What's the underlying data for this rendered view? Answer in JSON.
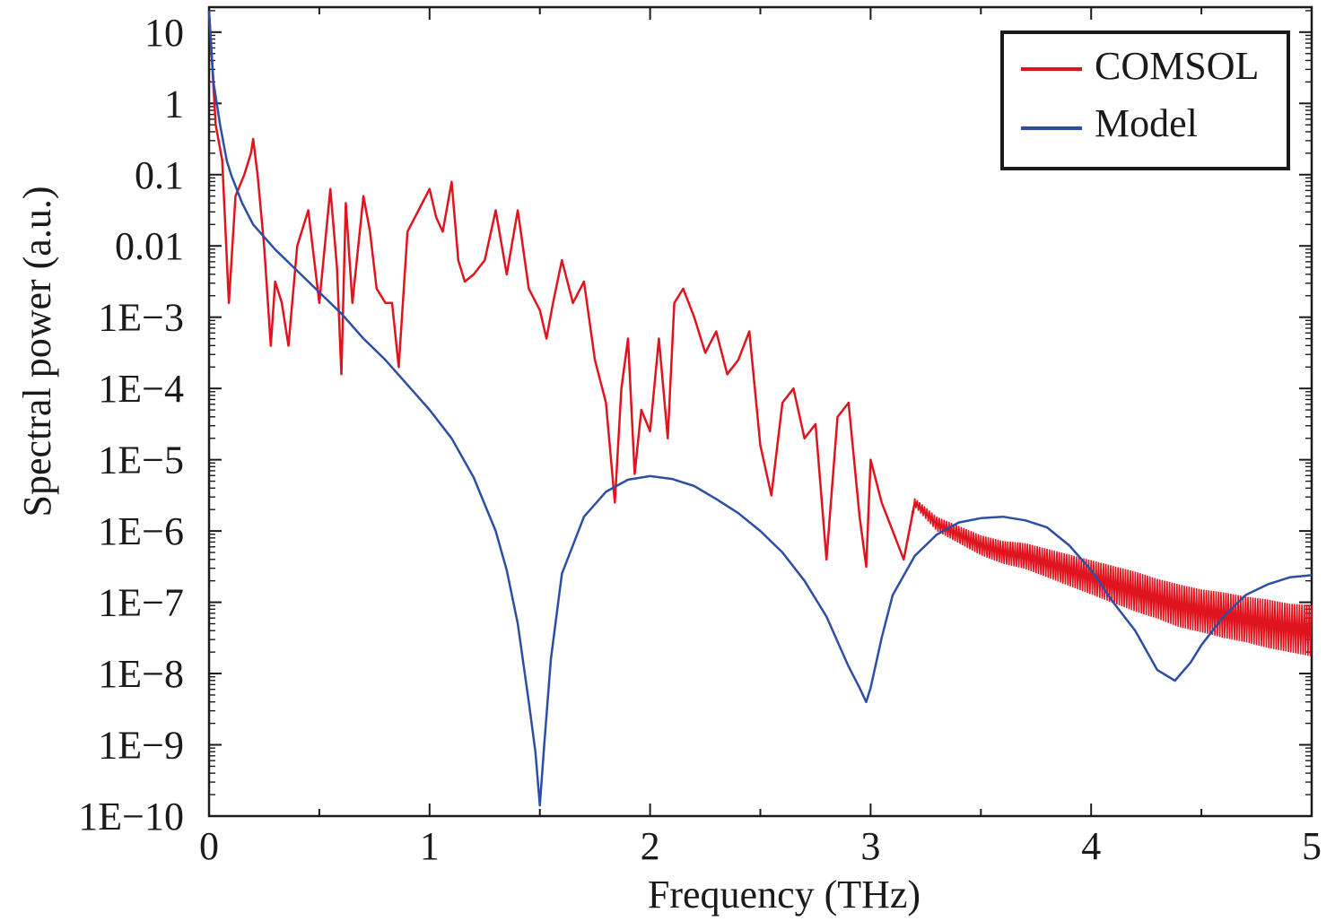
{
  "chart_data": {
    "type": "line",
    "xlabel": "Frequency (THz)",
    "ylabel": "Spectral power (a.u.)",
    "xlim": [
      0,
      5
    ],
    "ylim_log10": [
      -10,
      1.35
    ],
    "x_ticks": [
      0,
      1,
      2,
      3,
      4,
      5
    ],
    "x_tick_labels": [
      "0",
      "1",
      "2",
      "3",
      "4",
      "5"
    ],
    "y_ticks_log10": [
      1,
      0,
      -1,
      -2,
      -3,
      -4,
      -5,
      -6,
      -7,
      -8,
      -9,
      -10
    ],
    "y_tick_labels": [
      "10",
      "1",
      "0.1",
      "0.01",
      "1E−3",
      "1E−4",
      "1E−5",
      "1E−6",
      "1E−7",
      "1E−8",
      "1E−9",
      "1E−10"
    ],
    "legend_position": "top-right",
    "series": [
      {
        "name": "COMSOL",
        "color": "#e0141e",
        "x": [
          0.0,
          0.03,
          0.06,
          0.09,
          0.12,
          0.16,
          0.19,
          0.2,
          0.22,
          0.25,
          0.28,
          0.3,
          0.33,
          0.36,
          0.4,
          0.45,
          0.5,
          0.55,
          0.58,
          0.6,
          0.62,
          0.65,
          0.7,
          0.73,
          0.76,
          0.8,
          0.83,
          0.86,
          0.9,
          0.95,
          1.0,
          1.03,
          1.06,
          1.1,
          1.13,
          1.16,
          1.2,
          1.25,
          1.3,
          1.35,
          1.4,
          1.45,
          1.5,
          1.53,
          1.56,
          1.6,
          1.65,
          1.7,
          1.75,
          1.8,
          1.84,
          1.87,
          1.9,
          1.93,
          1.96,
          2.0,
          2.04,
          2.08,
          2.11,
          2.15,
          2.2,
          2.25,
          2.3,
          2.35,
          2.4,
          2.45,
          2.5,
          2.55,
          2.6,
          2.65,
          2.7,
          2.75,
          2.8,
          2.85,
          2.9,
          2.95,
          2.98,
          3.0,
          3.05,
          3.1,
          3.15,
          3.2,
          3.3,
          3.4,
          3.5,
          3.6,
          3.7,
          3.8,
          3.9,
          4.0,
          4.1,
          4.2,
          4.3,
          4.4,
          4.5,
          4.6,
          4.7,
          4.8,
          4.9,
          5.0
        ],
        "log10_y": [
          1.3,
          -0.3,
          -0.8,
          -2.8,
          -1.3,
          -1.0,
          -0.7,
          -0.5,
          -1.0,
          -2.0,
          -3.4,
          -2.5,
          -2.8,
          -3.4,
          -2.0,
          -1.5,
          -2.8,
          -1.2,
          -2.3,
          -3.8,
          -1.4,
          -2.8,
          -1.3,
          -1.8,
          -2.6,
          -2.8,
          -2.8,
          -3.7,
          -1.8,
          -1.5,
          -1.2,
          -1.6,
          -1.8,
          -1.1,
          -2.2,
          -2.5,
          -2.4,
          -2.2,
          -1.5,
          -2.4,
          -1.5,
          -2.6,
          -2.9,
          -3.3,
          -2.8,
          -2.2,
          -2.8,
          -2.5,
          -3.6,
          -4.2,
          -5.6,
          -4.0,
          -3.3,
          -5.2,
          -4.3,
          -4.6,
          -3.3,
          -4.7,
          -2.8,
          -2.6,
          -3.0,
          -3.5,
          -3.2,
          -3.8,
          -3.6,
          -3.2,
          -4.8,
          -5.5,
          -4.2,
          -4.0,
          -4.7,
          -4.5,
          -6.4,
          -4.4,
          -4.2,
          -5.8,
          -6.5,
          -5.0,
          -5.6,
          -6.0,
          -6.4,
          -5.6,
          -5.9,
          -6.05,
          -6.2,
          -6.3,
          -6.35,
          -6.45,
          -6.55,
          -6.65,
          -6.75,
          -6.85,
          -6.95,
          -7.05,
          -7.12,
          -7.18,
          -7.24,
          -7.3,
          -7.36,
          -7.4
        ],
        "noise_band_log10": [
          0,
          0,
          0,
          0,
          0,
          0,
          0,
          0,
          0,
          0,
          0,
          0,
          0,
          0,
          0,
          0,
          0,
          0,
          0,
          0,
          0,
          0,
          0,
          0,
          0,
          0,
          0,
          0,
          0,
          0,
          0,
          0,
          0,
          0,
          0,
          0,
          0,
          0,
          0,
          0,
          0,
          0,
          0,
          0,
          0,
          0,
          0,
          0,
          0,
          0,
          0,
          0,
          0,
          0,
          0,
          0,
          0,
          0,
          0,
          0,
          0,
          0,
          0,
          0,
          0,
          0,
          0,
          0,
          0,
          0,
          0,
          0,
          0,
          0,
          0,
          0,
          0,
          0,
          0,
          0,
          0,
          0.06,
          0.1,
          0.12,
          0.14,
          0.16,
          0.18,
          0.2,
          0.22,
          0.24,
          0.26,
          0.28,
          0.28,
          0.3,
          0.3,
          0.32,
          0.32,
          0.34,
          0.34,
          0.36
        ]
      },
      {
        "name": "Model",
        "color": "#2c4ea3",
        "x": [
          0.0,
          0.02,
          0.05,
          0.08,
          0.1,
          0.15,
          0.2,
          0.3,
          0.4,
          0.5,
          0.6,
          0.7,
          0.8,
          0.9,
          1.0,
          1.1,
          1.2,
          1.3,
          1.35,
          1.4,
          1.45,
          1.48,
          1.5,
          1.52,
          1.55,
          1.6,
          1.7,
          1.8,
          1.9,
          2.0,
          2.1,
          2.2,
          2.3,
          2.4,
          2.5,
          2.6,
          2.7,
          2.8,
          2.9,
          2.95,
          2.98,
          3.0,
          3.05,
          3.1,
          3.2,
          3.3,
          3.4,
          3.5,
          3.6,
          3.7,
          3.8,
          3.9,
          4.0,
          4.1,
          4.2,
          4.3,
          4.38,
          4.45,
          4.5,
          4.6,
          4.7,
          4.8,
          4.9,
          5.0
        ],
        "log10_y": [
          1.3,
          0.3,
          -0.3,
          -0.8,
          -1.0,
          -1.4,
          -1.7,
          -2.05,
          -2.35,
          -2.65,
          -2.95,
          -3.3,
          -3.6,
          -3.95,
          -4.3,
          -4.7,
          -5.25,
          -6.0,
          -6.55,
          -7.3,
          -8.4,
          -9.1,
          -9.85,
          -9.0,
          -7.8,
          -6.6,
          -5.8,
          -5.45,
          -5.28,
          -5.23,
          -5.27,
          -5.37,
          -5.55,
          -5.75,
          -6.0,
          -6.3,
          -6.7,
          -7.2,
          -7.9,
          -8.2,
          -8.4,
          -8.2,
          -7.5,
          -6.9,
          -6.35,
          -6.05,
          -5.88,
          -5.82,
          -5.8,
          -5.85,
          -5.95,
          -6.2,
          -6.55,
          -7.0,
          -7.4,
          -7.95,
          -8.1,
          -7.85,
          -7.6,
          -7.2,
          -6.9,
          -6.75,
          -6.65,
          -6.62
        ]
      }
    ]
  }
}
